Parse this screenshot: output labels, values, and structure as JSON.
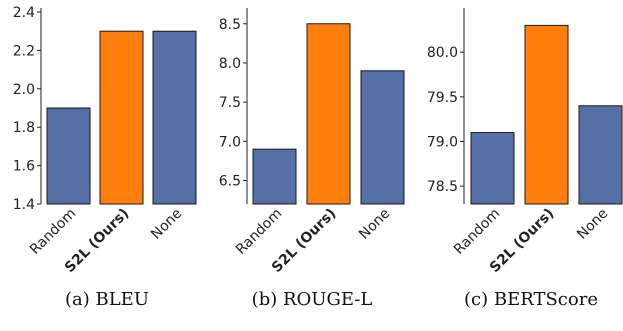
{
  "chart_data": [
    {
      "type": "bar",
      "caption": "(a) BLEU",
      "categories": [
        "Random",
        "S2L (Ours)",
        "None"
      ],
      "bold_categories": [
        "S2L (Ours)"
      ],
      "values": [
        1.9,
        2.3,
        2.3
      ],
      "colors": [
        "#5470a6",
        "#ff7f0e",
        "#5470a6"
      ],
      "ylim": [
        1.4,
        2.4
      ],
      "yticks": [
        1.4,
        1.6,
        1.8,
        2.0,
        2.2,
        2.4
      ],
      "yticklabels": [
        "1.4",
        "1.6",
        "1.8",
        "2.0",
        "2.2",
        "2.4"
      ],
      "grid": false
    },
    {
      "type": "bar",
      "caption": "(b) ROUGE-L",
      "categories": [
        "Random",
        "S2L (Ours)",
        "None"
      ],
      "bold_categories": [
        "S2L (Ours)"
      ],
      "values": [
        6.9,
        8.5,
        7.9
      ],
      "colors": [
        "#5470a6",
        "#ff7f0e",
        "#5470a6"
      ],
      "ylim": [
        6.2,
        8.65
      ],
      "yticks": [
        6.5,
        7.0,
        7.5,
        8.0,
        8.5
      ],
      "yticklabels": [
        "6.5",
        "7.0",
        "7.5",
        "8.0",
        "8.5"
      ],
      "grid": false
    },
    {
      "type": "bar",
      "caption": "(c) BERTScore",
      "categories": [
        "Random",
        "S2L (Ours)",
        "None"
      ],
      "bold_categories": [
        "S2L (Ours)"
      ],
      "values": [
        79.1,
        80.3,
        79.4
      ],
      "colors": [
        "#5470a6",
        "#ff7f0e",
        "#5470a6"
      ],
      "ylim": [
        78.3,
        80.45
      ],
      "yticks": [
        78.5,
        79.0,
        79.5,
        80.0
      ],
      "yticklabels": [
        "78.5",
        "79.0",
        "79.5",
        "80.0"
      ],
      "grid": false
    }
  ]
}
